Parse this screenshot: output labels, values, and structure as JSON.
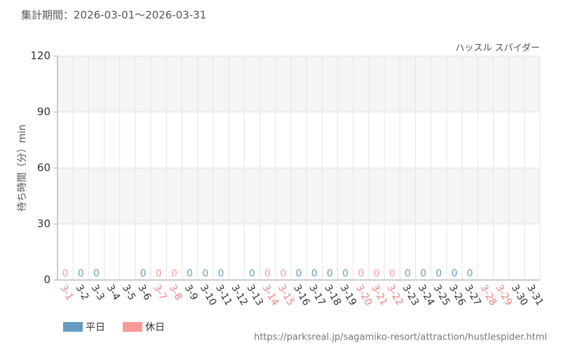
{
  "header": "集計期間：2026-03-01～2026-03-31",
  "footer": "https://parksreal.jp/sagamiko-resort/attraction/hustlespider.html",
  "chart_data": {
    "type": "bar",
    "subtitle": "ハッスル スパイダー",
    "y_label": "待ち時間（分）min",
    "categories": [
      "3-1",
      "3-2",
      "3-3",
      "3-4",
      "3-5",
      "3-6",
      "3-7",
      "3-8",
      "3-9",
      "3-10",
      "3-11",
      "3-12",
      "3-13",
      "3-14",
      "3-15",
      "3-16",
      "3-17",
      "3-18",
      "3-19",
      "3-20",
      "3-21",
      "3-22",
      "3-23",
      "3-24",
      "3-25",
      "3-26",
      "3-27",
      "3-28",
      "3-29",
      "3-30",
      "3-31"
    ],
    "category_label_colors": [
      "#f08080",
      "#333",
      "#333",
      "#333",
      "#333",
      "#333",
      "#f08080",
      "#f08080",
      "#333",
      "#333",
      "#333",
      "#333",
      "#333",
      "#f08080",
      "#f08080",
      "#333",
      "#333",
      "#333",
      "#333",
      "#f08080",
      "#f08080",
      "#f08080",
      "#333",
      "#333",
      "#333",
      "#333",
      "#333",
      "#f08080",
      "#f08080",
      "#333",
      "#333"
    ],
    "series": [
      {
        "name": "平日",
        "color": "#6a9bc3",
        "values": [
          null,
          0,
          0,
          null,
          null,
          0,
          null,
          null,
          0,
          0,
          0,
          null,
          0,
          null,
          null,
          0,
          0,
          0,
          0,
          null,
          null,
          null,
          0,
          0,
          0,
          0,
          0,
          null,
          null,
          null,
          null
        ]
      },
      {
        "name": "休日",
        "color": "#f99a9a",
        "values": [
          0,
          null,
          null,
          null,
          null,
          null,
          0,
          0,
          null,
          null,
          null,
          null,
          null,
          0,
          0,
          null,
          null,
          null,
          null,
          0,
          0,
          0,
          null,
          null,
          null,
          null,
          null,
          null,
          null,
          null,
          null
        ]
      }
    ],
    "ylim": [
      0,
      120
    ],
    "yticks": [
      0,
      30,
      60,
      90,
      120
    ],
    "grid": true
  }
}
